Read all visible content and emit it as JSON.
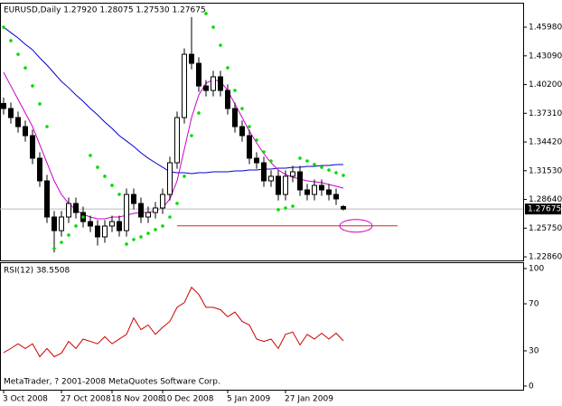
{
  "chart_data": [
    {
      "type": "candlestick",
      "title": "EURUSD,Daily  1.27920 1.28075 1.27530 1.27675",
      "categories": [
        "3 Oct 2008",
        null,
        null,
        null,
        null,
        null,
        null,
        null,
        "27 Oct 2008",
        null,
        null,
        null,
        null,
        null,
        null,
        "18 Nov 2008",
        null,
        null,
        null,
        null,
        null,
        null,
        "10 Dec 2008",
        null,
        null,
        null,
        null,
        null,
        null,
        null,
        null,
        "5 Jan 2009",
        null,
        null,
        null,
        null,
        null,
        null,
        null,
        "27 Jan 2009",
        null,
        null,
        null,
        null,
        null,
        null,
        null,
        null
      ],
      "open": [
        1.383,
        1.3779,
        1.3688,
        1.3597,
        1.3506,
        1.3279,
        1.3051,
        1.2687,
        1.255,
        1.2687,
        1.2823,
        1.2732,
        1.2641,
        1.2596,
        1.2487,
        1.2596,
        1.2641,
        1.255,
        1.2914,
        1.2823,
        1.2687,
        1.2732,
        1.2778,
        1.2914,
        1.3233,
        1.3688,
        1.4325,
        1.4234,
        1.4006,
        1.3961,
        1.4098,
        1.3961,
        1.3779,
        1.3597,
        1.3506,
        1.3279,
        1.3233,
        1.3051,
        1.3097,
        1.2914,
        1.3097,
        1.3142,
        1.296,
        1.2914,
        1.3005,
        1.296,
        1.2914,
        1.2792
      ],
      "high": [
        1.389,
        1.3839,
        1.3748,
        1.3657,
        1.3566,
        1.3339,
        1.3111,
        1.2747,
        1.2747,
        1.2883,
        1.2883,
        1.2792,
        1.2701,
        1.2656,
        1.2656,
        1.2701,
        1.2701,
        1.2974,
        1.2974,
        1.2883,
        1.2792,
        1.2838,
        1.2974,
        1.3293,
        1.3748,
        1.4385,
        1.47,
        1.4294,
        1.4066,
        1.4158,
        1.4158,
        1.4021,
        1.3839,
        1.3657,
        1.3566,
        1.3339,
        1.3293,
        1.3157,
        1.3157,
        1.3157,
        1.3202,
        1.3202,
        1.302,
        1.3065,
        1.3065,
        1.302,
        1.2974,
        1.28075
      ],
      "low": [
        1.3719,
        1.3628,
        1.3537,
        1.3446,
        1.3219,
        1.2991,
        1.2627,
        1.233,
        1.249,
        1.2627,
        1.2672,
        1.2581,
        1.2536,
        1.24,
        1.2427,
        1.2536,
        1.249,
        1.249,
        1.2763,
        1.2627,
        1.2627,
        1.2672,
        1.2718,
        1.2854,
        1.3173,
        1.3628,
        1.4174,
        1.3946,
        1.3901,
        1.3901,
        1.3901,
        1.3719,
        1.3537,
        1.3446,
        1.3219,
        1.3173,
        1.2991,
        1.2991,
        1.2854,
        1.2854,
        1.3037,
        1.29,
        1.2854,
        1.2854,
        1.29,
        1.2854,
        1.2809,
        1.2753
      ],
      "close": [
        1.3779,
        1.3688,
        1.3597,
        1.3506,
        1.3279,
        1.3051,
        1.2687,
        1.255,
        1.2687,
        1.2823,
        1.2732,
        1.2641,
        1.2596,
        1.2487,
        1.2596,
        1.2641,
        1.255,
        1.2914,
        1.2823,
        1.2687,
        1.2732,
        1.2778,
        1.2914,
        1.3233,
        1.3688,
        1.4325,
        1.4234,
        1.4006,
        1.3961,
        1.4098,
        1.3961,
        1.3779,
        1.3597,
        1.3506,
        1.3279,
        1.3233,
        1.3051,
        1.3097,
        1.2914,
        1.3097,
        1.3142,
        1.296,
        1.2914,
        1.3005,
        1.296,
        1.2914,
        1.2869,
        1.27675
      ],
      "lines": [
        {
          "color": "#0000cc",
          "values": [
            1.4598,
            1.4543,
            1.4489,
            1.4425,
            1.437,
            1.4289,
            1.4216,
            1.4134,
            1.4052,
            1.3988,
            1.3916,
            1.3852,
            1.3779,
            1.3715,
            1.3643,
            1.3579,
            1.3506,
            1.3452,
            1.3397,
            1.3333,
            1.3279,
            1.3233,
            1.3188,
            1.3142,
            1.3133,
            1.3133,
            1.3124,
            1.3133,
            1.3133,
            1.3142,
            1.3142,
            1.3142,
            1.3151,
            1.3151,
            1.316,
            1.316,
            1.3169,
            1.3169,
            1.3178,
            1.3178,
            1.3188,
            1.3188,
            1.3197,
            1.3197,
            1.3206,
            1.3206,
            1.3215,
            1.3215
          ]
        },
        {
          "color": "#cc00cc",
          "values": [
            1.4143,
            1.4006,
            1.387,
            1.3734,
            1.3597,
            1.3415,
            1.3233,
            1.3051,
            1.2914,
            1.2823,
            1.276,
            1.2714,
            1.2687,
            1.2669,
            1.2669,
            1.2687,
            1.2687,
            1.2705,
            1.2723,
            1.2732,
            1.2732,
            1.2751,
            1.2778,
            1.2869,
            1.3051,
            1.3369,
            1.3688,
            1.3916,
            1.4034,
            1.407,
            1.4052,
            1.3961,
            1.3825,
            1.3688,
            1.3552,
            1.3433,
            1.3324,
            1.3233,
            1.316,
            1.3115,
            1.3087,
            1.3069,
            1.3051,
            1.3042,
            1.3033,
            1.3015,
            1.2996,
            1.2978
          ]
        }
      ],
      "sar": {
        "color": "#00dd00",
        "values": [
          1.4598,
          1.4462,
          1.4325,
          1.4188,
          1.4007,
          1.3825,
          1.3597,
          1.2369,
          1.2432,
          1.2505,
          1.2596,
          1.2687,
          1.3306,
          1.3188,
          1.3097,
          1.3006,
          1.2915,
          1.2414,
          1.246,
          1.2487,
          1.2523,
          1.256,
          1.2596,
          1.2687,
          1.2824,
          1.3097,
          1.3506,
          1.3734,
          1.4735,
          1.4598,
          1.4416,
          1.4189,
          1.3961,
          1.3779,
          1.3597,
          1.3461,
          1.3342,
          1.3251,
          1.276,
          1.2778,
          1.2796,
          1.3279,
          1.3251,
          1.3215,
          1.3188,
          1.316,
          1.3133,
          1.3106
        ]
      },
      "hline": {
        "value": 1.2598,
        "color": "#e02020"
      },
      "last_price": 1.27675,
      "ylim": [
        1.225,
        1.4835
      ],
      "yticks": [
        {
          "value": 1.4598,
          "label": "1.45980"
        },
        {
          "value": 1.4309,
          "label": "1.43090"
        },
        {
          "value": 1.402,
          "label": "1.40200"
        },
        {
          "value": 1.3731,
          "label": "1.37310"
        },
        {
          "value": 1.3442,
          "label": "1.34420"
        },
        {
          "value": 1.3153,
          "label": "1.31530"
        },
        {
          "value": 1.2864,
          "label": "1.28640"
        },
        {
          "value": 1.2575,
          "label": "1.25750"
        },
        {
          "value": 1.2286,
          "label": "1.22860"
        }
      ]
    },
    {
      "type": "line",
      "title": "RSI(12) 38.5508",
      "annotation": "MetaTrader, ? 2001-2008 MetaQuotes Software Corp.",
      "color": "#cc0000",
      "values": [
        28.5,
        32,
        36,
        32,
        36,
        25,
        32,
        25,
        28,
        38,
        32,
        40,
        38,
        36,
        42,
        36,
        40,
        44,
        58,
        48,
        52,
        44,
        50,
        55,
        67,
        71,
        84,
        78,
        67,
        67,
        65,
        59,
        63,
        55,
        52,
        40,
        38,
        40,
        32,
        44,
        46,
        35,
        44,
        40,
        45,
        40,
        45,
        38.5508
      ],
      "ylim": [
        -3.1,
        104.6
      ],
      "yticks": [
        100,
        70,
        30,
        0
      ]
    }
  ]
}
